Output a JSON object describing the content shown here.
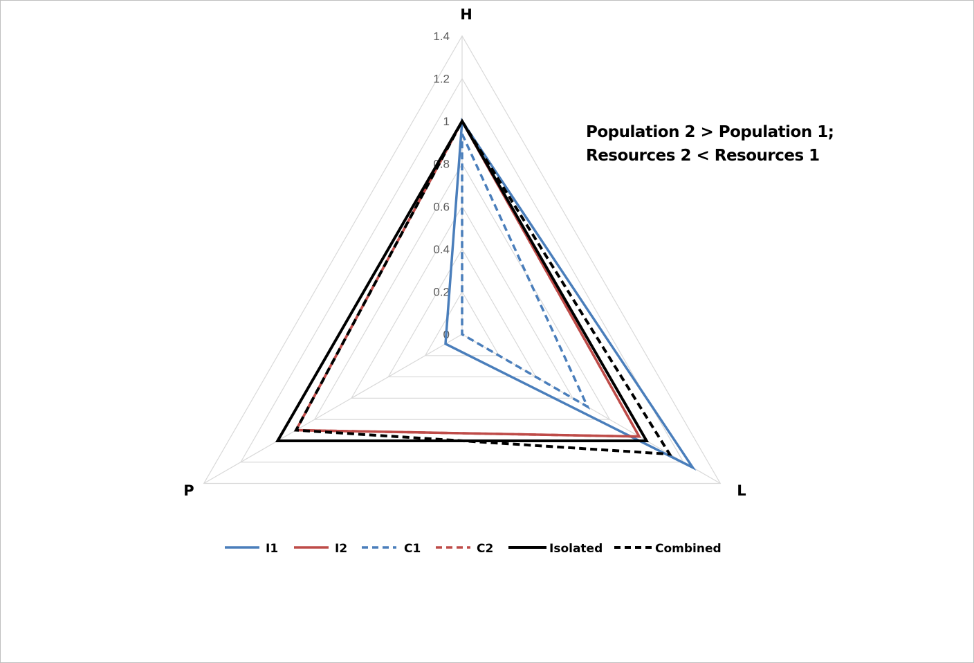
{
  "chart_data": {
    "type": "radar",
    "axes": [
      "H",
      "L",
      "P"
    ],
    "rlim": [
      0,
      1.4
    ],
    "ticks": [
      "0",
      "0.2",
      "0.4",
      "0.6",
      "0.8",
      "1",
      "1.2",
      "1.4"
    ],
    "tick_values": [
      0,
      0.2,
      0.4,
      0.6,
      0.8,
      1,
      1.2,
      1.4
    ],
    "grid": true,
    "legend_position": "bottom",
    "annotation": [
      "Population 2 > Population 1;",
      "Resources 2 < Resources 1"
    ],
    "series": [
      {
        "name": "I1",
        "color": "#4a7ebb",
        "dash": false,
        "values": {
          "H": 1,
          "L": 1.25,
          "P": 0.09
        }
      },
      {
        "name": "I2",
        "color": "#be4b48",
        "dash": false,
        "values": {
          "H": 1,
          "L": 0.96,
          "P": 0.9
        }
      },
      {
        "name": "C1",
        "color": "#4a7ebb",
        "dash": true,
        "values": {
          "H": 0.94,
          "L": 0.68,
          "P": 0.0
        }
      },
      {
        "name": "C2",
        "color": "#be4b48",
        "dash": true,
        "values": {
          "H": 1,
          "L": 0.96,
          "P": 0.9
        }
      },
      {
        "name": "Isolated",
        "color": "#000000",
        "dash": false,
        "values": {
          "H": 1,
          "L": 1.0,
          "P": 1.0
        }
      },
      {
        "name": "Combined",
        "color": "#000000",
        "dash": true,
        "values": {
          "H": 1,
          "L": 1.125,
          "P": 0.9
        }
      }
    ]
  }
}
